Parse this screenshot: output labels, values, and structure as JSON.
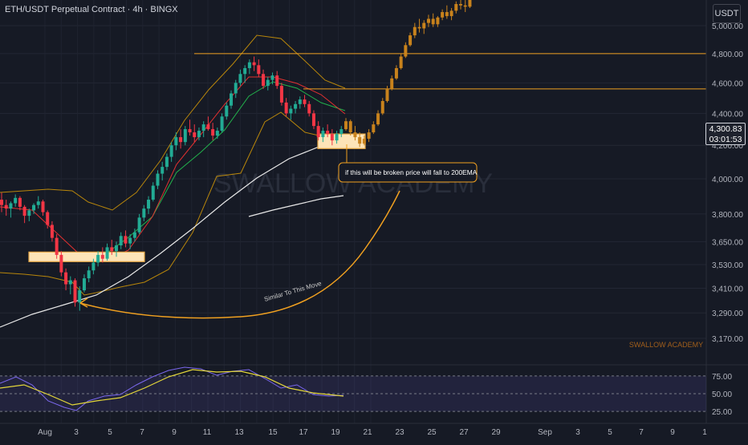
{
  "header": {
    "title": "ETH/USDT Perpetual Contract · 4h · BINGX",
    "currency_button": "USDT"
  },
  "price_badge": {
    "price": "4,300.83",
    "countdown": "03:01:53"
  },
  "watermarks": {
    "main": "SWALLOW ACADEMY",
    "corner": "SWALLOW ACADEMY"
  },
  "annotations": {
    "callout": "if this will be broken price will fall to 200EMA",
    "arc_label": "Similar To This Move"
  },
  "colors": {
    "background": "#161a25",
    "candle_up": "#22ab94",
    "candle_down": "#f23645",
    "projection": "#c8821c",
    "level_line": "#f0a020",
    "bollinger": "#b8860b",
    "ema_fast": "#e03030",
    "ema_mid": "#22b14c",
    "ema_200": "#e8e8e8",
    "rsi_line": "#7b68ee",
    "rsi_ma": "#e5d83a",
    "zone_fill": "#fde4b8"
  },
  "chart_data": {
    "type": "candlestick",
    "symbol": "ETH/USDT Perpetual Contract",
    "timeframe": "4h",
    "exchange": "BINGX",
    "y_axis": {
      "ticks": [
        3170,
        3290,
        3410,
        3530,
        3650,
        3800,
        4000,
        4200,
        4400,
        4600,
        4800,
        5000
      ],
      "tick_labels": [
        "3,170.00",
        "3,290.00",
        "3,410.00",
        "3,530.00",
        "3,650.00",
        "3,800.00",
        "4,000.00",
        "4,200.00",
        "4,400.00",
        "4,600.00",
        "4,800.00",
        "5,000.00"
      ],
      "scale": "log"
    },
    "x_axis": {
      "tick_labels": [
        "Aug",
        "3",
        "5",
        "7",
        "9",
        "11",
        "13",
        "15",
        "17",
        "19",
        "21",
        "23",
        "25",
        "27",
        "29",
        "Sep",
        "3",
        "5",
        "7",
        "9",
        "1"
      ]
    },
    "current_price": 4300.83,
    "horizontal_levels": [
      4800,
      4560
    ],
    "demand_zones": [
      {
        "from": "Aug 1",
        "to": "Aug 6",
        "low": 3545,
        "high": 3595
      },
      {
        "from": "Aug 18",
        "to": "Aug 20",
        "low": 4180,
        "high": 4270
      }
    ],
    "candles": [
      [
        3880,
        3920,
        3810,
        3850
      ],
      [
        3850,
        3880,
        3790,
        3830
      ],
      [
        3830,
        3870,
        3780,
        3860
      ],
      [
        3860,
        3910,
        3840,
        3890
      ],
      [
        3890,
        3900,
        3820,
        3840
      ],
      [
        3840,
        3850,
        3750,
        3790
      ],
      [
        3790,
        3830,
        3760,
        3820
      ],
      [
        3820,
        3860,
        3800,
        3850
      ],
      [
        3850,
        3900,
        3830,
        3870
      ],
      [
        3870,
        3880,
        3790,
        3810
      ],
      [
        3810,
        3820,
        3720,
        3740
      ],
      [
        3740,
        3760,
        3650,
        3670
      ],
      [
        3670,
        3690,
        3560,
        3580
      ],
      [
        3580,
        3600,
        3470,
        3490
      ],
      [
        3490,
        3510,
        3400,
        3430
      ],
      [
        3430,
        3470,
        3380,
        3450
      ],
      [
        3450,
        3460,
        3320,
        3340
      ],
      [
        3340,
        3420,
        3300,
        3400
      ],
      [
        3400,
        3480,
        3390,
        3460
      ],
      [
        3460,
        3520,
        3440,
        3500
      ],
      [
        3500,
        3560,
        3480,
        3540
      ],
      [
        3540,
        3600,
        3520,
        3580
      ],
      [
        3580,
        3620,
        3540,
        3560
      ],
      [
        3560,
        3640,
        3550,
        3620
      ],
      [
        3620,
        3660,
        3580,
        3600
      ],
      [
        3600,
        3650,
        3570,
        3630
      ],
      [
        3630,
        3700,
        3610,
        3680
      ],
      [
        3680,
        3710,
        3620,
        3640
      ],
      [
        3640,
        3690,
        3610,
        3670
      ],
      [
        3670,
        3720,
        3650,
        3700
      ],
      [
        3700,
        3800,
        3690,
        3780
      ],
      [
        3780,
        3850,
        3760,
        3830
      ],
      [
        3830,
        3900,
        3800,
        3880
      ],
      [
        3880,
        3980,
        3870,
        3960
      ],
      [
        3960,
        4050,
        3940,
        4030
      ],
      [
        4030,
        4100,
        3990,
        4070
      ],
      [
        4070,
        4150,
        4050,
        4130
      ],
      [
        4130,
        4220,
        4100,
        4200
      ],
      [
        4200,
        4280,
        4170,
        4250
      ],
      [
        4250,
        4300,
        4180,
        4220
      ],
      [
        4220,
        4320,
        4200,
        4300
      ],
      [
        4300,
        4360,
        4260,
        4280
      ],
      [
        4280,
        4330,
        4220,
        4250
      ],
      [
        4250,
        4310,
        4230,
        4290
      ],
      [
        4290,
        4350,
        4250,
        4330
      ],
      [
        4330,
        4380,
        4290,
        4300
      ],
      [
        4300,
        4340,
        4230,
        4260
      ],
      [
        4260,
        4310,
        4240,
        4290
      ],
      [
        4290,
        4400,
        4280,
        4380
      ],
      [
        4380,
        4470,
        4360,
        4450
      ],
      [
        4450,
        4550,
        4430,
        4530
      ],
      [
        4530,
        4620,
        4500,
        4600
      ],
      [
        4600,
        4690,
        4580,
        4660
      ],
      [
        4660,
        4720,
        4600,
        4700
      ],
      [
        4700,
        4760,
        4660,
        4740
      ],
      [
        4740,
        4780,
        4680,
        4720
      ],
      [
        4720,
        4760,
        4640,
        4660
      ],
      [
        4660,
        4690,
        4560,
        4580
      ],
      [
        4580,
        4640,
        4550,
        4620
      ],
      [
        4620,
        4670,
        4590,
        4650
      ],
      [
        4650,
        4680,
        4560,
        4580
      ],
      [
        4580,
        4600,
        4450,
        4470
      ],
      [
        4470,
        4500,
        4380,
        4400
      ],
      [
        4400,
        4450,
        4360,
        4430
      ],
      [
        4430,
        4480,
        4400,
        4460
      ],
      [
        4460,
        4510,
        4430,
        4490
      ],
      [
        4490,
        4520,
        4440,
        4460
      ],
      [
        4460,
        4480,
        4380,
        4400
      ],
      [
        4400,
        4420,
        4300,
        4320
      ],
      [
        4320,
        4350,
        4230,
        4250
      ],
      [
        4250,
        4310,
        4220,
        4290
      ],
      [
        4290,
        4330,
        4250,
        4270
      ],
      [
        4270,
        4300,
        4200,
        4230
      ],
      [
        4230,
        4290,
        4210,
        4270
      ],
      [
        4270,
        4320,
        4250,
        4300
      ]
    ],
    "projection": [
      [
        4300,
        4370,
        4290,
        4350
      ],
      [
        4350,
        4360,
        4260,
        4280
      ],
      [
        4280,
        4320,
        4230,
        4250
      ],
      [
        4250,
        4280,
        4190,
        4210
      ],
      [
        4210,
        4260,
        4200,
        4240
      ],
      [
        4240,
        4300,
        4220,
        4280
      ],
      [
        4280,
        4350,
        4270,
        4330
      ],
      [
        4330,
        4420,
        4320,
        4400
      ],
      [
        4400,
        4500,
        4390,
        4480
      ],
      [
        4480,
        4580,
        4470,
        4560
      ],
      [
        4560,
        4650,
        4550,
        4630
      ],
      [
        4630,
        4720,
        4620,
        4700
      ],
      [
        4700,
        4800,
        4690,
        4780
      ],
      [
        4780,
        4880,
        4770,
        4860
      ],
      [
        4860,
        4950,
        4850,
        4930
      ],
      [
        4930,
        5020,
        4910,
        4990
      ],
      [
        4990,
        5050,
        4950,
        4980
      ],
      [
        4980,
        5040,
        4940,
        5020
      ],
      [
        5020,
        5080,
        4990,
        5050
      ],
      [
        5050,
        5090,
        4990,
        5010
      ],
      [
        5010,
        5070,
        4990,
        5060
      ],
      [
        5060,
        5120,
        5040,
        5100
      ],
      [
        5100,
        5150,
        5050,
        5070
      ],
      [
        5070,
        5130,
        5040,
        5110
      ],
      [
        5110,
        5180,
        5090,
        5160
      ],
      [
        5160,
        5200,
        5120,
        5150
      ],
      [
        5150,
        5190,
        5100,
        5140
      ],
      [
        5140,
        5230,
        5130,
        5210
      ]
    ],
    "rsi": {
      "levels": [
        75,
        50,
        25
      ],
      "level_labels": [
        "75.00",
        "50.00",
        "25.00"
      ]
    }
  }
}
